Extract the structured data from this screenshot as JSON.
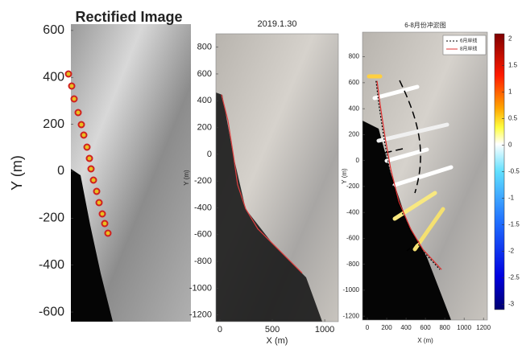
{
  "chart_data": [
    {
      "type": "image",
      "title": "Rectified Image",
      "ylabel": "Y (m)",
      "ylim": [
        -641,
        627
      ],
      "yticks": [
        600,
        400,
        200,
        0,
        -200,
        -400,
        -600
      ]
    },
    {
      "type": "line",
      "title": "2019.1.30",
      "xlabel": "X (m)",
      "ylabel": "Y (m)",
      "xlim": [
        -38,
        1130
      ],
      "ylim": [
        -1250,
        900
      ],
      "xticks": [
        0,
        500,
        1000
      ],
      "yticks": [
        800,
        600,
        400,
        200,
        0,
        -200,
        -400,
        -600,
        -800,
        -1000,
        -1200
      ],
      "series": [
        {
          "color": "#e04040",
          "x": [
            15,
            77,
            131,
            169,
            246,
            362,
            515,
            669,
            785
          ],
          "values": [
            446,
            253,
            -17,
            -227,
            -407,
            -557,
            -677,
            -797,
            -888
          ]
        }
      ]
    },
    {
      "type": "line",
      "title": "6-8月份冲淤图",
      "xlabel": "X (m)",
      "ylabel": "Y (m)",
      "xlim": [
        -50,
        1240
      ],
      "ylim": [
        -1230,
        990
      ],
      "xticks": [
        0,
        200,
        400,
        600,
        800,
        1000,
        1200
      ],
      "yticks": [
        800,
        600,
        400,
        200,
        0,
        -200,
        -400,
        -600,
        -800,
        -1000,
        -1200
      ],
      "series": [
        {
          "name": "6月岸线",
          "color": "#000000",
          "dash": true,
          "x": [
            90,
            120,
            170,
            228,
            310,
            435,
            560,
            750
          ],
          "values": [
            614,
            428,
            181,
            -67,
            -315,
            -531,
            -686,
            -841
          ]
        },
        {
          "name": "8月岸线",
          "color": "#e03030",
          "dash": false,
          "x": [
            100,
            133,
            183,
            242,
            325,
            450,
            575,
            767
          ],
          "values": [
            614,
            428,
            181,
            -67,
            -315,
            -531,
            -686,
            -841
          ]
        }
      ],
      "colorbar": {
        "clim": [
          -3.1,
          2.1
        ],
        "ticks": [
          2,
          1.5,
          1,
          0.5,
          0,
          -0.5,
          -1,
          -1.5,
          -2,
          -2.5,
          -3
        ]
      }
    }
  ]
}
